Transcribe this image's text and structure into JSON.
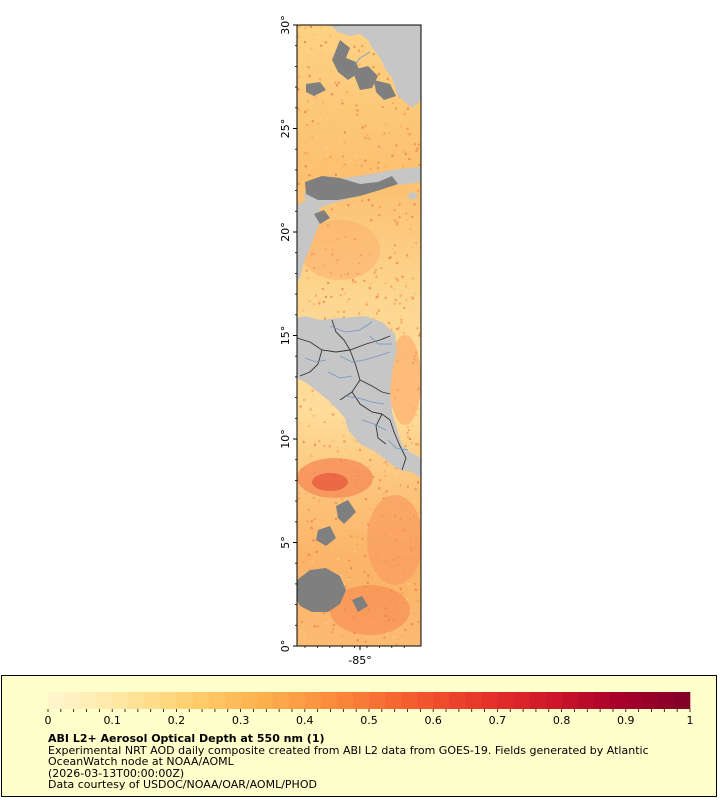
{
  "map": {
    "lat_ticks": [
      "0°",
      "5°",
      "10°",
      "15°",
      "20°",
      "25°",
      "30°"
    ],
    "lon_ticks": [
      "-85°"
    ],
    "land_color": "#c6c6c6",
    "missing_data_color": "#7f7f7f",
    "border_color": "#333333",
    "river_color": "#6f97c9"
  },
  "legend": {
    "title": "ABI L2+ Aerosol Optical Depth at 550 nm (1)",
    "description": "Experimental NRT AOD daily composite created from ABI L2 data from GOES-19. Fields generated by Atlantic OceanWatch node at NOAA/AOML",
    "timestamp": "(2026-03-13T00:00:00Z)",
    "credit": "Data courtesy of USDOC/NOAA/OAR/AOML/PHOD",
    "background": "#ffffcc",
    "colorbar": {
      "min": 0,
      "max": 1,
      "tick_labels": [
        "0",
        "0.1",
        "0.2",
        "0.3",
        "0.4",
        "0.5",
        "0.6",
        "0.7",
        "0.8",
        "0.9",
        "1"
      ],
      "colors": [
        "#fff7cf",
        "#ffe7a3",
        "#ffcf6d",
        "#fdb04d",
        "#fb8c3c",
        "#f5602f",
        "#e8382a",
        "#d0182a",
        "#a8002b",
        "#800026"
      ]
    }
  }
}
